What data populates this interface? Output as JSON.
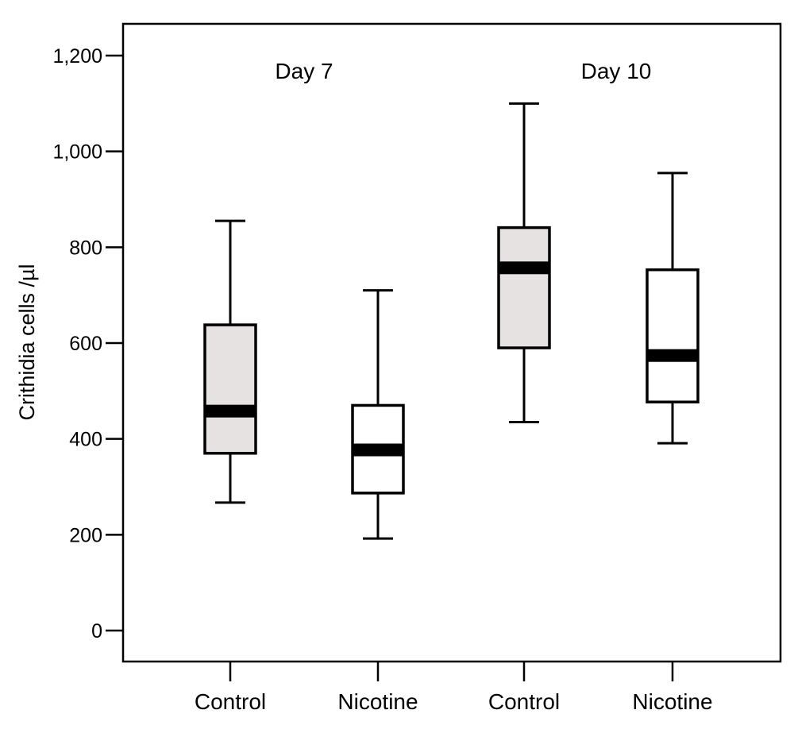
{
  "chart_data": {
    "type": "box",
    "ylabel": "Crithidia cells /µl",
    "ylim": [
      0,
      1270
    ],
    "yticks": [
      {
        "value": 0,
        "label": "0"
      },
      {
        "value": 200,
        "label": "200"
      },
      {
        "value": 400,
        "label": "400"
      },
      {
        "value": 600,
        "label": "600"
      },
      {
        "value": 800,
        "label": "800"
      },
      {
        "value": 1000,
        "label": "1,000"
      },
      {
        "value": 1200,
        "label": "1,200"
      }
    ],
    "groups": [
      {
        "label": "Day 7"
      },
      {
        "label": "Day 10"
      }
    ],
    "boxes": [
      {
        "category": "Control",
        "group": "Day 7",
        "min": 267,
        "q1": 370,
        "median": 458,
        "q3": 638,
        "max": 855,
        "fill": "#e6e2e2"
      },
      {
        "category": "Nicotine",
        "group": "Day 7",
        "min": 192,
        "q1": 287,
        "median": 377,
        "q3": 470,
        "max": 710,
        "fill": "#ffffff"
      },
      {
        "category": "Control",
        "group": "Day 10",
        "min": 435,
        "q1": 590,
        "median": 757,
        "q3": 841,
        "max": 1100,
        "fill": "#e6e2e2"
      },
      {
        "category": "Nicotine",
        "group": "Day 10",
        "min": 391,
        "q1": 477,
        "median": 574,
        "q3": 753,
        "max": 955,
        "fill": "#ffffff"
      }
    ]
  }
}
